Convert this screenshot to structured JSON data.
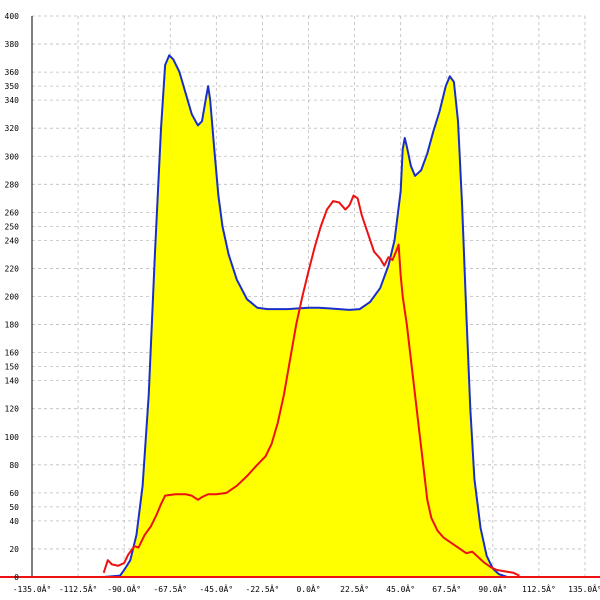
{
  "chart_data": {
    "type": "area",
    "title": "",
    "xlabel": "",
    "ylabel": "",
    "xlim": [
      -135,
      135
    ],
    "ylim": [
      0,
      400
    ],
    "grid": true,
    "legend": "none",
    "x_ticks": [
      -135,
      -112.5,
      -90,
      -67.5,
      -45,
      -22.5,
      0,
      22.5,
      45,
      67.5,
      90,
      112.5,
      135
    ],
    "x_tick_labels": [
      "-135.0Â°",
      "-112.5Â°",
      "-90.0Â°",
      "-67.5Â°",
      "-45.0Â°",
      "-22.5Â°",
      "0.0Â°",
      "22.5Â°",
      "45.0Â°",
      "67.5Â°",
      "90.0Â°",
      "112.5Â°",
      "135.0Â°"
    ],
    "y_ticks": [
      0,
      20,
      40,
      50,
      60,
      80,
      100,
      120,
      140,
      150,
      160,
      180,
      200,
      220,
      240,
      250,
      260,
      280,
      300,
      320,
      340,
      350,
      360,
      380,
      400
    ],
    "y_tick_labels": [
      "0",
      "20",
      "40",
      "50",
      "60",
      "80",
      "100",
      "120",
      "140",
      "150",
      "160",
      "180",
      "200",
      "220",
      "240",
      "250",
      "260",
      "280",
      "300",
      "320",
      "340",
      "350",
      "360",
      "380",
      "400"
    ],
    "colors": {
      "area_fill": "#ffff00",
      "blue_line": "#1a2ecc",
      "red_line": "#ee1111",
      "baseline": "#ee1111"
    },
    "series": [
      {
        "color": "#1a2ecc",
        "filled": true,
        "points": [
          [
            -100,
            0
          ],
          [
            -92,
            1
          ],
          [
            -90,
            5
          ],
          [
            -87,
            12
          ],
          [
            -84,
            30
          ],
          [
            -81,
            65
          ],
          [
            -78,
            130
          ],
          [
            -75,
            230
          ],
          [
            -72,
            320
          ],
          [
            -70,
            365
          ],
          [
            -68,
            372
          ],
          [
            -66,
            369
          ],
          [
            -63,
            360
          ],
          [
            -60,
            345
          ],
          [
            -57,
            330
          ],
          [
            -54,
            322
          ],
          [
            -52,
            325
          ],
          [
            -50,
            342
          ],
          [
            -49,
            350
          ],
          [
            -48,
            340
          ],
          [
            -46,
            305
          ],
          [
            -44,
            272
          ],
          [
            -42,
            250
          ],
          [
            -39,
            230
          ],
          [
            -35,
            212
          ],
          [
            -30,
            198
          ],
          [
            -25,
            192
          ],
          [
            -20,
            191
          ],
          [
            -15,
            191
          ],
          [
            -10,
            191
          ],
          [
            -5,
            191.5
          ],
          [
            0,
            192
          ],
          [
            5,
            192
          ],
          [
            10,
            191.5
          ],
          [
            15,
            191
          ],
          [
            20,
            190.5
          ],
          [
            25,
            191
          ],
          [
            30,
            196
          ],
          [
            35,
            206
          ],
          [
            39,
            222
          ],
          [
            42,
            240
          ],
          [
            45,
            275
          ],
          [
            46,
            305
          ],
          [
            47,
            313
          ],
          [
            48,
            307
          ],
          [
            50,
            293
          ],
          [
            52,
            286
          ],
          [
            55,
            290
          ],
          [
            58,
            302
          ],
          [
            61,
            318
          ],
          [
            64,
            332
          ],
          [
            67,
            350
          ],
          [
            69,
            357
          ],
          [
            71,
            353
          ],
          [
            73,
            325
          ],
          [
            75,
            265
          ],
          [
            77,
            190
          ],
          [
            79,
            120
          ],
          [
            81,
            70
          ],
          [
            84,
            35
          ],
          [
            87,
            15
          ],
          [
            90,
            6
          ],
          [
            93,
            2
          ],
          [
            97,
            0
          ]
        ]
      },
      {
        "color": "#ee1111",
        "filled": false,
        "points": [
          [
            -100,
            3
          ],
          [
            -98,
            12
          ],
          [
            -96,
            9
          ],
          [
            -93,
            8
          ],
          [
            -90,
            10
          ],
          [
            -88,
            16
          ],
          [
            -85,
            22
          ],
          [
            -83,
            21
          ],
          [
            -80,
            30
          ],
          [
            -77,
            36
          ],
          [
            -74,
            45
          ],
          [
            -72,
            52
          ],
          [
            -70,
            58
          ],
          [
            -65,
            59
          ],
          [
            -60,
            59
          ],
          [
            -57,
            58
          ],
          [
            -54,
            55
          ],
          [
            -52,
            57
          ],
          [
            -49,
            59
          ],
          [
            -45,
            59
          ],
          [
            -40,
            60
          ],
          [
            -35,
            65
          ],
          [
            -30,
            72
          ],
          [
            -25,
            80
          ],
          [
            -21,
            86
          ],
          [
            -18,
            95
          ],
          [
            -15,
            110
          ],
          [
            -12,
            130
          ],
          [
            -9,
            155
          ],
          [
            -6,
            180
          ],
          [
            -3,
            200
          ],
          [
            0,
            218
          ],
          [
            3,
            235
          ],
          [
            6,
            250
          ],
          [
            9,
            262
          ],
          [
            12,
            268
          ],
          [
            15,
            267
          ],
          [
            18,
            262
          ],
          [
            20,
            265
          ],
          [
            22,
            272
          ],
          [
            24,
            270
          ],
          [
            26,
            258
          ],
          [
            29,
            245
          ],
          [
            32,
            232
          ],
          [
            35,
            227
          ],
          [
            37,
            222
          ],
          [
            39,
            228
          ],
          [
            41,
            226
          ],
          [
            43,
            233
          ],
          [
            44,
            237
          ],
          [
            45,
            215
          ],
          [
            46,
            200
          ],
          [
            48,
            180
          ],
          [
            50,
            155
          ],
          [
            52,
            130
          ],
          [
            54,
            105
          ],
          [
            56,
            80
          ],
          [
            58,
            55
          ],
          [
            60,
            42
          ],
          [
            63,
            33
          ],
          [
            66,
            28
          ],
          [
            70,
            24
          ],
          [
            74,
            20
          ],
          [
            77,
            17
          ],
          [
            80,
            18
          ],
          [
            83,
            14
          ],
          [
            86,
            10
          ],
          [
            89,
            7
          ],
          [
            92,
            5
          ],
          [
            96,
            4
          ],
          [
            100,
            3
          ],
          [
            103,
            1
          ]
        ]
      }
    ]
  }
}
